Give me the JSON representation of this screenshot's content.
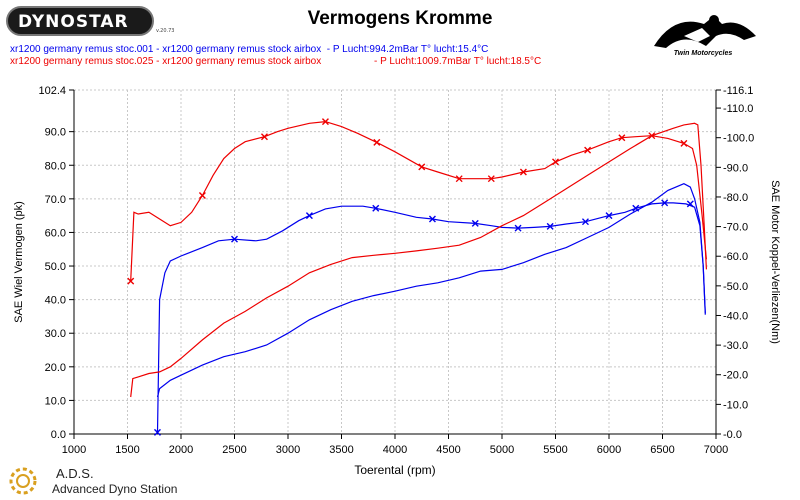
{
  "header": {
    "logo_text": "DYNOSTAR",
    "version_text": "v.20.73",
    "title": "Vermogens Kromme",
    "legend_line_1": "xr1200 germany remus stoc.001 - xr1200 germany remus stock airbox  - P Lucht:994.2mBar T° lucht:15.4°C",
    "legend_line_2": "xr1200 germany remus stoc.025 - xr1200 germany remus stock airbox                   - P Lucht:1009.7mBar T° lucht:18.5°C",
    "brand_text": "Twin Motorcycles"
  },
  "footer": {
    "company_abbr": "A.D.S.",
    "company_name": "Advanced Dyno Station"
  },
  "chart_data": {
    "type": "line",
    "title": "Vermogens Kromme",
    "xlabel": "Toerental (rpm)",
    "ylabel_left": "SAE Wiel Vermogen (pk)",
    "ylabel_right": "SAE Motor Koppel-Verliezen(Nm)",
    "xlim": [
      1000,
      7000
    ],
    "ylim_left": [
      0,
      102.4
    ],
    "ylim_right": [
      0,
      116.1
    ],
    "x_ticks": [
      1000,
      1500,
      2000,
      2500,
      3000,
      3500,
      4000,
      4500,
      5000,
      5500,
      6000,
      6500,
      7000
    ],
    "y_left_ticks": [
      "0.0",
      "10.0",
      "20.0",
      "30.0",
      "40.0",
      "50.0",
      "60.0",
      "70.0",
      "80.0",
      "90.0",
      "102.4"
    ],
    "y_left_tick_values": [
      0,
      10,
      20,
      30,
      40,
      50,
      60,
      70,
      80,
      90,
      102.4
    ],
    "y_right_ticks": [
      "0.0",
      "10.0",
      "20.0",
      "30.0",
      "40.0",
      "50.0",
      "60.0",
      "70.0",
      "80.0",
      "90.0",
      "100.0",
      "110.0",
      "116.1"
    ],
    "y_right_tick_values": [
      0,
      10,
      20,
      30,
      40,
      50,
      60,
      70,
      80,
      90,
      100,
      110,
      116.1
    ],
    "grid": true,
    "series": [
      {
        "name": "xr1200 germany remus stoc.001",
        "color": "#0000ee",
        "axis": "left",
        "points": [
          [
            1780,
            0.5
          ],
          [
            1800,
            40
          ],
          [
            1850,
            48
          ],
          [
            1900,
            51.5
          ],
          [
            2000,
            53
          ],
          [
            2200,
            55.5
          ],
          [
            2350,
            57.5
          ],
          [
            2500,
            58
          ],
          [
            2700,
            57.5
          ],
          [
            2800,
            58
          ],
          [
            2950,
            60.5
          ],
          [
            3100,
            63.5
          ],
          [
            3200,
            65
          ],
          [
            3350,
            67
          ],
          [
            3500,
            67.8
          ],
          [
            3700,
            67.8
          ],
          [
            3820,
            67.2
          ],
          [
            4000,
            66
          ],
          [
            4200,
            64.5
          ],
          [
            4350,
            64
          ],
          [
            4500,
            63.2
          ],
          [
            4750,
            62.7
          ],
          [
            4900,
            62
          ],
          [
            5000,
            61.5
          ],
          [
            5150,
            61.3
          ],
          [
            5300,
            61.5
          ],
          [
            5450,
            61.8
          ],
          [
            5600,
            62.5
          ],
          [
            5780,
            63.2
          ],
          [
            6000,
            65
          ],
          [
            6150,
            66
          ],
          [
            6250,
            67.2
          ],
          [
            6400,
            68.5
          ],
          [
            6520,
            68.8
          ],
          [
            6600,
            68.8
          ],
          [
            6720,
            68.5
          ],
          [
            6800,
            67.5
          ],
          [
            6850,
            62
          ],
          [
            6880,
            50
          ],
          [
            6900,
            35.5
          ]
        ]
      },
      {
        "name": "xr1200 germany remus stoc.001",
        "color": "#0000ee",
        "axis": "left",
        "points": [
          [
            1780,
            11
          ],
          [
            1800,
            13.5
          ],
          [
            1900,
            16
          ],
          [
            2000,
            17.5
          ],
          [
            2200,
            20.5
          ],
          [
            2400,
            23
          ],
          [
            2600,
            24.5
          ],
          [
            2800,
            26.5
          ],
          [
            3000,
            30
          ],
          [
            3200,
            34
          ],
          [
            3400,
            37
          ],
          [
            3600,
            39.5
          ],
          [
            3800,
            41.2
          ],
          [
            4000,
            42.5
          ],
          [
            4200,
            44
          ],
          [
            4400,
            45
          ],
          [
            4600,
            46.5
          ],
          [
            4800,
            48.5
          ],
          [
            5000,
            49
          ],
          [
            5200,
            51
          ],
          [
            5400,
            53.5
          ],
          [
            5600,
            55.5
          ],
          [
            5800,
            58.5
          ],
          [
            6000,
            61.5
          ],
          [
            6200,
            65.5
          ],
          [
            6400,
            69
          ],
          [
            6550,
            72.5
          ],
          [
            6700,
            74.5
          ],
          [
            6760,
            73.5
          ],
          [
            6800,
            70
          ],
          [
            6850,
            63
          ],
          [
            6880,
            50
          ],
          [
            6900,
            36
          ]
        ]
      },
      {
        "name": "xr1200 germany remus stoc.025",
        "color": "#ee0000",
        "axis": "left",
        "points": [
          [
            1530,
            45.5
          ],
          [
            1560,
            66
          ],
          [
            1600,
            65.5
          ],
          [
            1700,
            66
          ],
          [
            1800,
            64
          ],
          [
            1900,
            62
          ],
          [
            2000,
            63
          ],
          [
            2100,
            66
          ],
          [
            2200,
            71
          ],
          [
            2300,
            77
          ],
          [
            2400,
            82
          ],
          [
            2500,
            85
          ],
          [
            2600,
            87
          ],
          [
            2780,
            88.5
          ],
          [
            2900,
            90
          ],
          [
            3000,
            91
          ],
          [
            3200,
            92.5
          ],
          [
            3350,
            93
          ],
          [
            3500,
            91.5
          ],
          [
            3650,
            89.5
          ],
          [
            3830,
            86.8
          ],
          [
            4000,
            84
          ],
          [
            4250,
            79.5
          ],
          [
            4400,
            78
          ],
          [
            4600,
            76
          ],
          [
            4750,
            76
          ],
          [
            4900,
            76
          ],
          [
            5000,
            76.5
          ],
          [
            5200,
            78
          ],
          [
            5400,
            79
          ],
          [
            5500,
            81
          ],
          [
            5650,
            83
          ],
          [
            5800,
            84.5
          ],
          [
            6000,
            87
          ],
          [
            6120,
            88.2
          ],
          [
            6250,
            88.5
          ],
          [
            6400,
            88.8
          ],
          [
            6550,
            88
          ],
          [
            6700,
            86.5
          ],
          [
            6780,
            85
          ],
          [
            6820,
            80
          ],
          [
            6870,
            65
          ],
          [
            6910,
            52
          ]
        ]
      },
      {
        "name": "xr1200 germany remus stoc.025",
        "color": "#ee0000",
        "axis": "left",
        "points": [
          [
            1530,
            11
          ],
          [
            1550,
            16.5
          ],
          [
            1600,
            17
          ],
          [
            1700,
            18
          ],
          [
            1800,
            18.5
          ],
          [
            1900,
            20
          ],
          [
            2000,
            22.5
          ],
          [
            2200,
            28
          ],
          [
            2400,
            33
          ],
          [
            2600,
            36.5
          ],
          [
            2800,
            40.5
          ],
          [
            3000,
            44
          ],
          [
            3200,
            48
          ],
          [
            3400,
            50.5
          ],
          [
            3600,
            52.5
          ],
          [
            3800,
            53.2
          ],
          [
            4000,
            53.8
          ],
          [
            4200,
            54.5
          ],
          [
            4400,
            55.3
          ],
          [
            4600,
            56.2
          ],
          [
            4800,
            58.5
          ],
          [
            5000,
            62
          ],
          [
            5200,
            65
          ],
          [
            5400,
            69
          ],
          [
            5600,
            73
          ],
          [
            5800,
            77
          ],
          [
            6000,
            81
          ],
          [
            6200,
            85
          ],
          [
            6400,
            88.8
          ],
          [
            6600,
            91
          ],
          [
            6700,
            92
          ],
          [
            6800,
            92.5
          ],
          [
            6830,
            92
          ],
          [
            6860,
            80
          ],
          [
            6890,
            62
          ],
          [
            6910,
            49
          ]
        ]
      }
    ],
    "markers": {
      "blue": [
        [
          1780,
          0.5
        ],
        [
          2500,
          58
        ],
        [
          3200,
          65
        ],
        [
          3820,
          67.2
        ],
        [
          4350,
          64
        ],
        [
          4750,
          62.7
        ],
        [
          5150,
          61.3
        ],
        [
          5450,
          61.8
        ],
        [
          5780,
          63.2
        ],
        [
          6000,
          65
        ],
        [
          6250,
          67.2
        ],
        [
          6520,
          68.8
        ],
        [
          6760,
          68.5
        ]
      ],
      "red": [
        [
          1530,
          45.5
        ],
        [
          2200,
          71
        ],
        [
          2780,
          88.5
        ],
        [
          3350,
          93
        ],
        [
          3830,
          86.8
        ],
        [
          4250,
          79.5
        ],
        [
          4600,
          76
        ],
        [
          4900,
          76
        ],
        [
          5200,
          78
        ],
        [
          5500,
          81
        ],
        [
          5800,
          84.5
        ],
        [
          6120,
          88.2
        ],
        [
          6400,
          88.8
        ],
        [
          6700,
          86.5
        ]
      ]
    }
  }
}
